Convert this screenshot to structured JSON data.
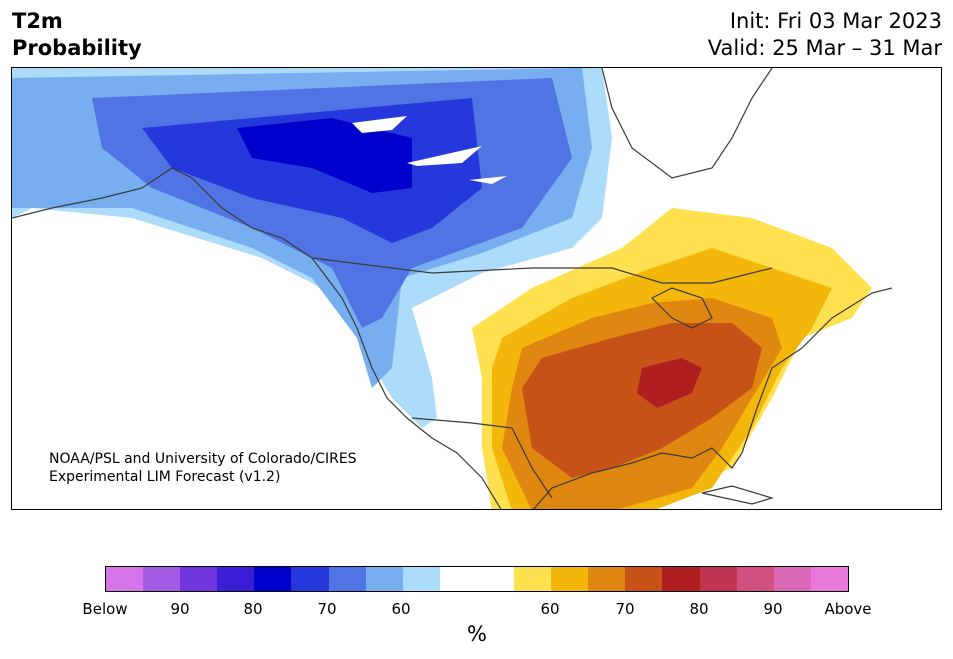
{
  "title": {
    "line1": "T2m",
    "line2": "Probability"
  },
  "init": "Init: Fri 03 Mar 2023",
  "valid": "Valid: 25 Mar – 31 Mar",
  "credit": {
    "line1": "NOAA/PSL and University of Colorado/CIRES",
    "line2": "Experimental LIM Forecast (v1.2)"
  },
  "colorbar": {
    "colors": [
      "#d575e8",
      "#a35ae3",
      "#7035dc",
      "#3a1ed6",
      "#0000cc",
      "#2538db",
      "#5074e4",
      "#77aef0",
      "#acdcfa",
      "#ffffff",
      "#ffffff",
      "#ffe04e",
      "#f3b70b",
      "#df8710",
      "#c75217",
      "#b01f1f",
      "#c03651",
      "#d0507f",
      "#dc68b8",
      "#e878dc"
    ],
    "labels": [
      "Below",
      "90",
      "80",
      "70",
      "60",
      "60",
      "70",
      "80",
      "90",
      "Above"
    ],
    "unit": "%"
  },
  "map": {
    "cold_color": "#2538db",
    "warm_color": "#c75217",
    "land_outline": "#3a3a3a"
  }
}
